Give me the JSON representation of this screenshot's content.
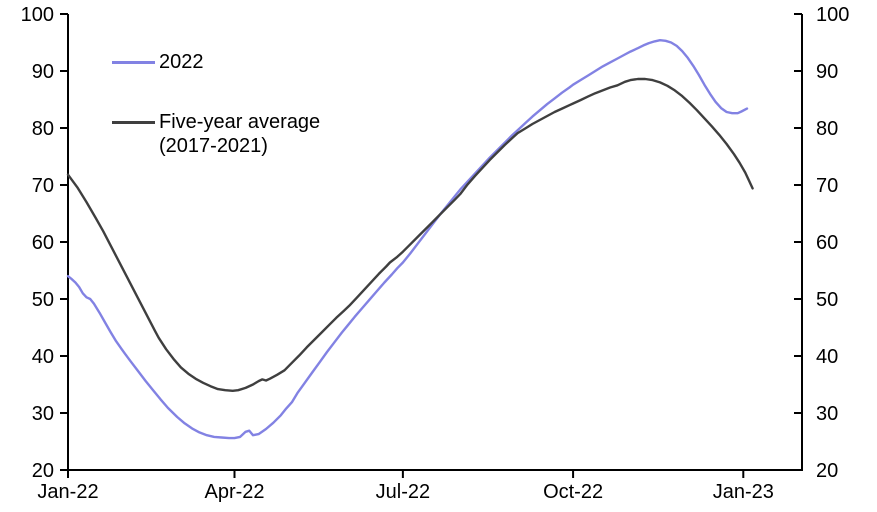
{
  "chart_data": {
    "type": "line",
    "title": "",
    "background_color": "#ffffff",
    "axis_color": "#000000",
    "grid": false,
    "y_axis": {
      "min": 20,
      "max": 100,
      "step": 10,
      "dual_axis": true,
      "ticks": [
        100,
        90,
        80,
        70,
        60,
        50,
        40,
        30,
        20
      ]
    },
    "x_axis": {
      "unit": "days-from-2022-01-01",
      "domain_days": [
        0,
        397
      ],
      "ticks": [
        {
          "day": 0,
          "label": "Jan-22"
        },
        {
          "day": 90,
          "label": "Apr-22"
        },
        {
          "day": 181,
          "label": "Jul-22"
        },
        {
          "day": 273,
          "label": "Oct-22"
        },
        {
          "day": 365,
          "label": "Jan-23"
        }
      ]
    },
    "legend": [
      {
        "label": "2022",
        "color": "#8282e3"
      },
      {
        "label": "Five-year average",
        "sublabel": "(2017-2021)",
        "color": "#3f3f3f"
      }
    ],
    "series": [
      {
        "name": "2022",
        "color": "#8282e3",
        "points": [
          [
            0,
            54.0
          ],
          [
            2,
            53.5
          ],
          [
            4,
            52.9
          ],
          [
            6,
            52.1
          ],
          [
            8,
            51.0
          ],
          [
            10,
            50.3
          ],
          [
            12,
            50.0
          ],
          [
            14,
            49.2
          ],
          [
            17,
            47.6
          ],
          [
            20,
            45.9
          ],
          [
            23,
            44.2
          ],
          [
            26,
            42.6
          ],
          [
            29,
            41.2
          ],
          [
            31,
            40.3
          ],
          [
            34,
            39.0
          ],
          [
            38,
            37.3
          ],
          [
            42,
            35.6
          ],
          [
            46,
            34.0
          ],
          [
            50,
            32.4
          ],
          [
            54,
            30.9
          ],
          [
            59,
            29.3
          ],
          [
            63,
            28.2
          ],
          [
            67,
            27.3
          ],
          [
            71,
            26.6
          ],
          [
            75,
            26.1
          ],
          [
            79,
            25.8
          ],
          [
            83,
            25.7
          ],
          [
            87,
            25.6
          ],
          [
            90,
            25.6
          ],
          [
            93,
            25.8
          ],
          [
            96,
            26.7
          ],
          [
            98,
            26.9
          ],
          [
            100,
            26.1
          ],
          [
            103,
            26.3
          ],
          [
            107,
            27.2
          ],
          [
            111,
            28.3
          ],
          [
            115,
            29.6
          ],
          [
            118,
            30.8
          ],
          [
            121,
            31.9
          ],
          [
            124,
            33.5
          ],
          [
            128,
            35.3
          ],
          [
            132,
            37.1
          ],
          [
            136,
            38.9
          ],
          [
            140,
            40.7
          ],
          [
            144,
            42.4
          ],
          [
            148,
            44.1
          ],
          [
            151,
            45.3
          ],
          [
            155,
            46.9
          ],
          [
            159,
            48.4
          ],
          [
            163,
            49.9
          ],
          [
            167,
            51.4
          ],
          [
            171,
            52.9
          ],
          [
            175,
            54.3
          ],
          [
            178,
            55.4
          ],
          [
            181,
            56.4
          ],
          [
            185,
            58.0
          ],
          [
            189,
            59.7
          ],
          [
            193,
            61.4
          ],
          [
            197,
            63.1
          ],
          [
            201,
            64.8
          ],
          [
            205,
            66.4
          ],
          [
            209,
            68.0
          ],
          [
            212,
            69.2
          ],
          [
            216,
            70.6
          ],
          [
            220,
            72.0
          ],
          [
            224,
            73.4
          ],
          [
            228,
            74.8
          ],
          [
            232,
            76.1
          ],
          [
            236,
            77.4
          ],
          [
            240,
            78.7
          ],
          [
            243,
            79.6
          ],
          [
            247,
            80.8
          ],
          [
            251,
            82.0
          ],
          [
            255,
            83.1
          ],
          [
            259,
            84.2
          ],
          [
            263,
            85.2
          ],
          [
            267,
            86.2
          ],
          [
            271,
            87.1
          ],
          [
            273,
            87.6
          ],
          [
            277,
            88.4
          ],
          [
            281,
            89.2
          ],
          [
            285,
            90.0
          ],
          [
            289,
            90.8
          ],
          [
            293,
            91.5
          ],
          [
            297,
            92.2
          ],
          [
            301,
            92.9
          ],
          [
            304,
            93.4
          ],
          [
            308,
            94.0
          ],
          [
            311,
            94.5
          ],
          [
            314,
            94.9
          ],
          [
            317,
            95.2
          ],
          [
            320,
            95.4
          ],
          [
            323,
            95.3
          ],
          [
            326,
            95.0
          ],
          [
            329,
            94.4
          ],
          [
            332,
            93.5
          ],
          [
            335,
            92.3
          ],
          [
            338,
            90.9
          ],
          [
            341,
            89.3
          ],
          [
            344,
            87.6
          ],
          [
            347,
            86.0
          ],
          [
            350,
            84.6
          ],
          [
            353,
            83.5
          ],
          [
            356,
            82.8
          ],
          [
            359,
            82.6
          ],
          [
            362,
            82.6
          ],
          [
            364,
            82.9
          ],
          [
            367,
            83.4
          ]
        ]
      },
      {
        "name": "Five-year average (2017-2021)",
        "color": "#3f3f3f",
        "points": [
          [
            0,
            71.8
          ],
          [
            5,
            69.6
          ],
          [
            10,
            67.0
          ],
          [
            15,
            64.2
          ],
          [
            19,
            61.9
          ],
          [
            23,
            59.4
          ],
          [
            27,
            56.9
          ],
          [
            31,
            54.4
          ],
          [
            35,
            51.9
          ],
          [
            39,
            49.4
          ],
          [
            43,
            46.9
          ],
          [
            47,
            44.4
          ],
          [
            49,
            43.2
          ],
          [
            53,
            41.2
          ],
          [
            57,
            39.5
          ],
          [
            61,
            38.0
          ],
          [
            65,
            36.9
          ],
          [
            69,
            36.0
          ],
          [
            73,
            35.3
          ],
          [
            77,
            34.7
          ],
          [
            81,
            34.2
          ],
          [
            85,
            34.0
          ],
          [
            89,
            33.9
          ],
          [
            92,
            34.0
          ],
          [
            96,
            34.4
          ],
          [
            100,
            35.0
          ],
          [
            103,
            35.6
          ],
          [
            105,
            35.9
          ],
          [
            107,
            35.7
          ],
          [
            109,
            36.0
          ],
          [
            113,
            36.7
          ],
          [
            117,
            37.5
          ],
          [
            121,
            38.8
          ],
          [
            125,
            40.1
          ],
          [
            129,
            41.5
          ],
          [
            133,
            42.8
          ],
          [
            137,
            44.1
          ],
          [
            141,
            45.4
          ],
          [
            145,
            46.7
          ],
          [
            149,
            47.9
          ],
          [
            152,
            48.8
          ],
          [
            156,
            50.2
          ],
          [
            160,
            51.6
          ],
          [
            164,
            53.0
          ],
          [
            168,
            54.4
          ],
          [
            172,
            55.7
          ],
          [
            174,
            56.4
          ],
          [
            178,
            57.4
          ],
          [
            181,
            58.3
          ],
          [
            185,
            59.6
          ],
          [
            189,
            60.9
          ],
          [
            193,
            62.2
          ],
          [
            197,
            63.5
          ],
          [
            201,
            64.8
          ],
          [
            205,
            66.1
          ],
          [
            209,
            67.4
          ],
          [
            212,
            68.4
          ],
          [
            216,
            70.1
          ],
          [
            220,
            71.6
          ],
          [
            224,
            73.0
          ],
          [
            228,
            74.4
          ],
          [
            232,
            75.7
          ],
          [
            236,
            77.0
          ],
          [
            240,
            78.2
          ],
          [
            243,
            79.1
          ],
          [
            247,
            79.9
          ],
          [
            251,
            80.7
          ],
          [
            255,
            81.4
          ],
          [
            259,
            82.1
          ],
          [
            263,
            82.8
          ],
          [
            267,
            83.4
          ],
          [
            271,
            84.0
          ],
          [
            273,
            84.3
          ],
          [
            277,
            84.9
          ],
          [
            281,
            85.5
          ],
          [
            285,
            86.1
          ],
          [
            289,
            86.6
          ],
          [
            293,
            87.1
          ],
          [
            297,
            87.5
          ],
          [
            301,
            88.1
          ],
          [
            304,
            88.4
          ],
          [
            308,
            88.6
          ],
          [
            312,
            88.6
          ],
          [
            316,
            88.4
          ],
          [
            320,
            88.0
          ],
          [
            324,
            87.4
          ],
          [
            328,
            86.6
          ],
          [
            332,
            85.6
          ],
          [
            336,
            84.4
          ],
          [
            340,
            83.1
          ],
          [
            344,
            81.7
          ],
          [
            348,
            80.3
          ],
          [
            352,
            78.8
          ],
          [
            356,
            77.2
          ],
          [
            360,
            75.4
          ],
          [
            363,
            73.9
          ],
          [
            366,
            72.2
          ],
          [
            368,
            70.8
          ],
          [
            370,
            69.4
          ]
        ]
      }
    ]
  }
}
